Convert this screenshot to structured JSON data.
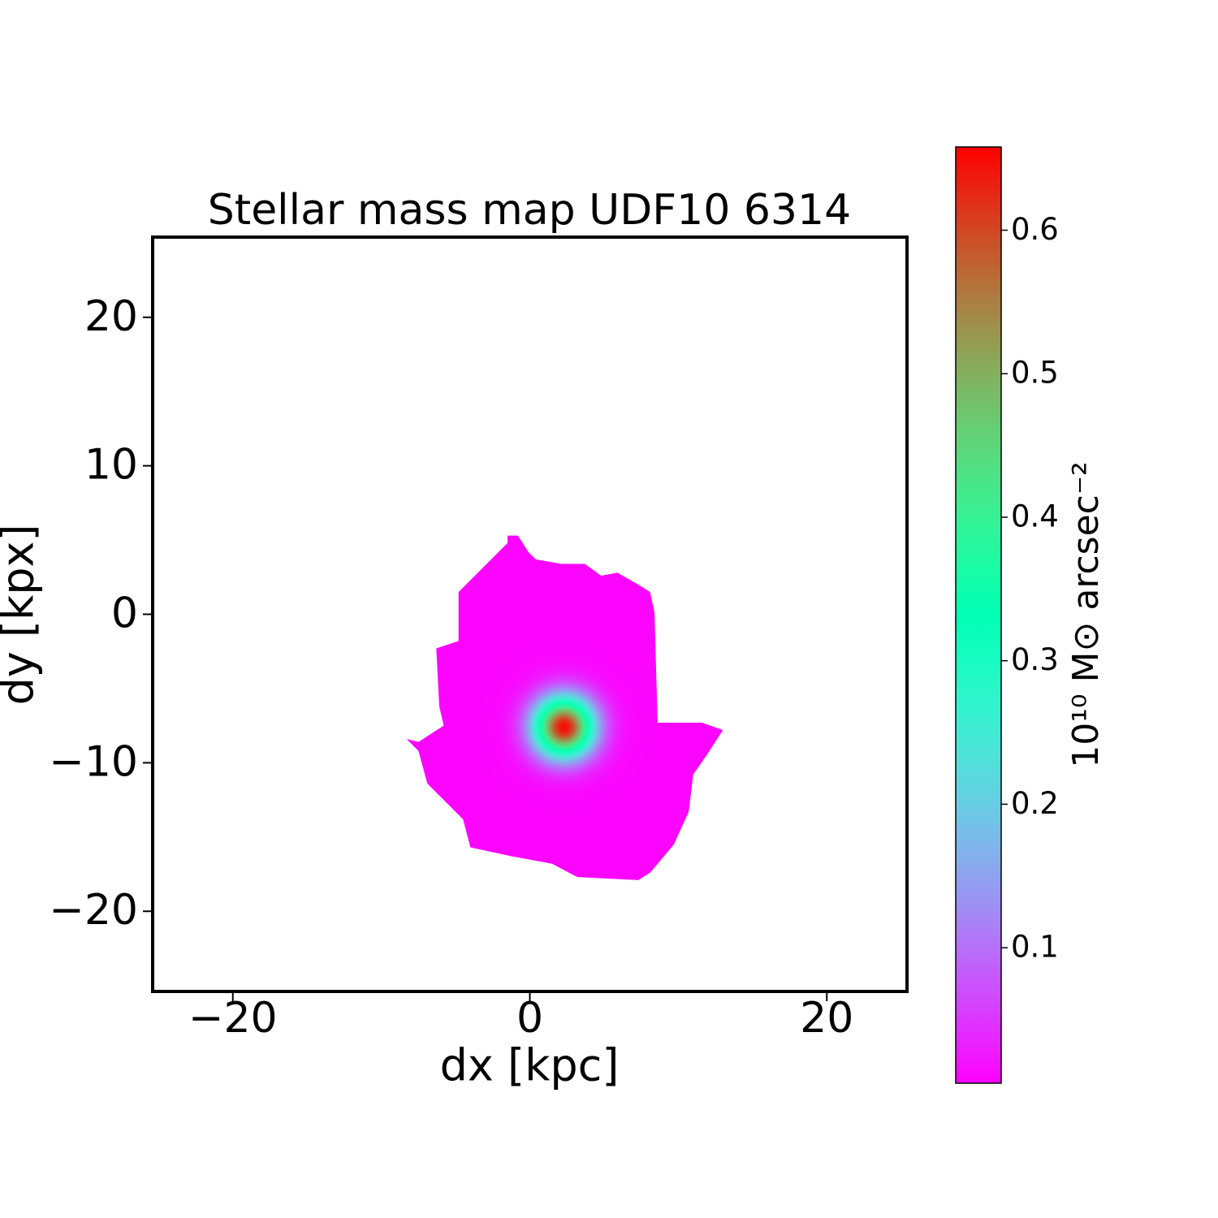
{
  "chart_data": {
    "type": "image",
    "title": "Stellar mass map UDF10 6314",
    "x_label": "dx [kpc]",
    "y_label": "dy [kpx]",
    "xlim": [
      -25.4,
      25.4
    ],
    "ylim": [
      -25.4,
      25.4
    ],
    "xticks": [
      {
        "value": -20,
        "label": "−20"
      },
      0,
      20
    ],
    "yticks": [
      {
        "value": -20,
        "label": "−20"
      },
      {
        "value": -10,
        "label": "−10"
      },
      0,
      10,
      20
    ],
    "colormap": "rainbow",
    "clim": [
      0.0056,
      0.658
    ],
    "colorbar_ticks": [
      0.1,
      0.2,
      0.3,
      0.4,
      0.5,
      0.6
    ],
    "colorbar_label": "10¹⁰ M⊙ arcsec⁻²",
    "floor": 0.01,
    "peak": {
      "x": 2.3,
      "y": -7.6,
      "value": 0.65
    },
    "outline": {
      "x": [
        -1.5,
        -0.8,
        -0.1,
        0.4,
        2.1,
        3.7,
        4.8,
        5.9,
        7.3,
        8.1,
        8.4,
        8.6,
        11.6,
        13.0,
        11.9,
        11.0,
        10.7,
        9.7,
        8.1,
        7.3,
        3.2,
        1.5,
        -1.2,
        -4.0,
        -4.5,
        -5.6,
        -6.9,
        -7.5,
        -8.3,
        -7.5,
        -5.8,
        -6.1,
        -6.3,
        -4.8,
        -4.8,
        -3.7,
        -2.6,
        -1.5
      ],
      "y": [
        5.3,
        5.3,
        4.2,
        3.7,
        3.4,
        3.4,
        2.6,
        2.8,
        2.0,
        1.5,
        0.1,
        -7.3,
        -7.3,
        -7.8,
        -9.5,
        -10.8,
        -13.3,
        -15.5,
        -17.4,
        -17.9,
        -17.7,
        -16.8,
        -16.3,
        -15.7,
        -13.8,
        -12.7,
        -11.4,
        -9.2,
        -8.4,
        -8.6,
        -7.5,
        -6.2,
        -2.3,
        -1.8,
        1.5,
        2.6,
        3.7,
        4.8
      ]
    }
  }
}
